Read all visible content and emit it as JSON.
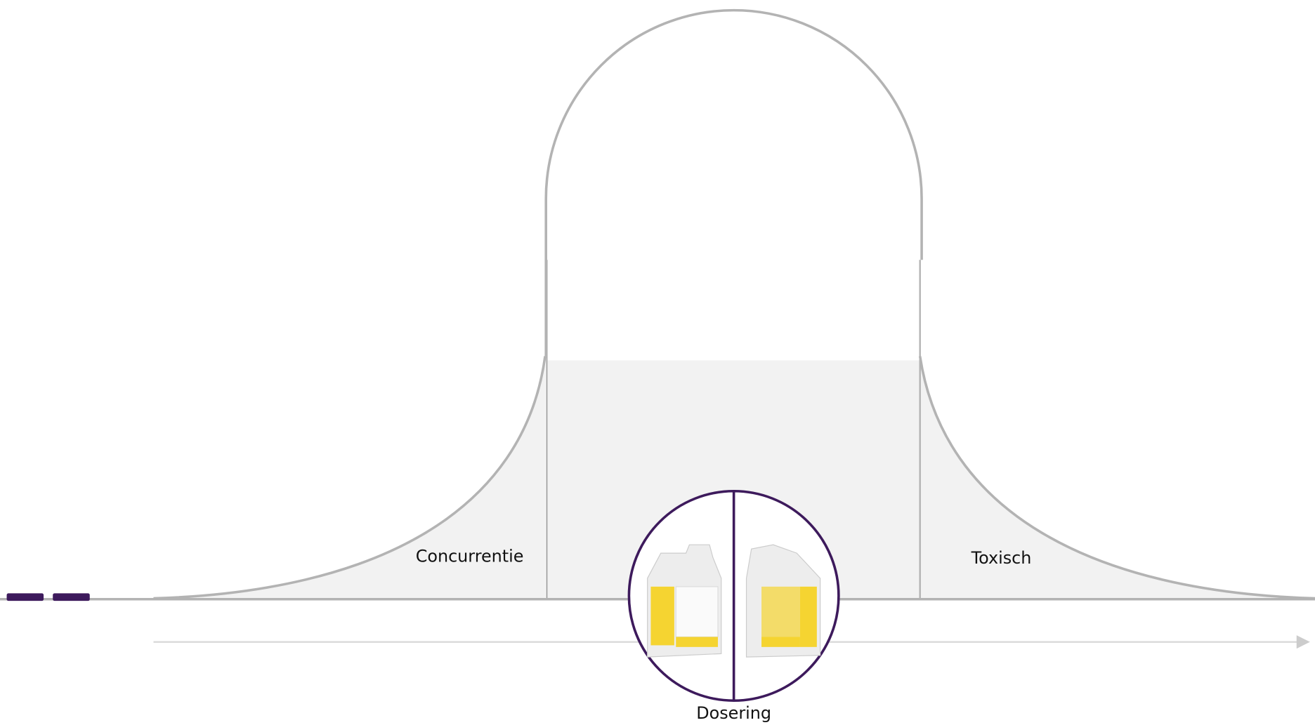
{
  "labels": {
    "left": "Concurrentie",
    "right": "Toxisch",
    "axis": "Dosering"
  }
}
